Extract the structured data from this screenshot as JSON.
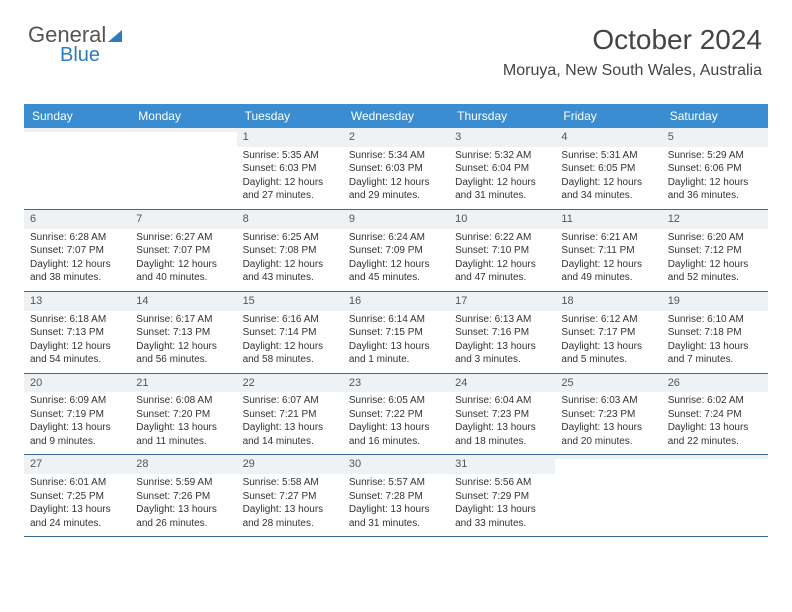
{
  "logo": {
    "text1": "General",
    "text2": "Blue"
  },
  "header": {
    "title": "October 2024",
    "subtitle": "Moruya, New South Wales, Australia"
  },
  "colors": {
    "header_bar": "#3a8dd0",
    "header_text": "#ffffff",
    "week_border": "#3a6a94",
    "shaded_bg": "#eef2f5",
    "body_text": "#333333",
    "logo_blue": "#2f7bbf"
  },
  "dayNames": [
    "Sunday",
    "Monday",
    "Tuesday",
    "Wednesday",
    "Thursday",
    "Friday",
    "Saturday"
  ],
  "weeks": [
    [
      {
        "num": "",
        "sunrise": "",
        "sunset": "",
        "daylight": ""
      },
      {
        "num": "",
        "sunrise": "",
        "sunset": "",
        "daylight": ""
      },
      {
        "num": "1",
        "sunrise": "Sunrise: 5:35 AM",
        "sunset": "Sunset: 6:03 PM",
        "daylight": "Daylight: 12 hours and 27 minutes."
      },
      {
        "num": "2",
        "sunrise": "Sunrise: 5:34 AM",
        "sunset": "Sunset: 6:03 PM",
        "daylight": "Daylight: 12 hours and 29 minutes."
      },
      {
        "num": "3",
        "sunrise": "Sunrise: 5:32 AM",
        "sunset": "Sunset: 6:04 PM",
        "daylight": "Daylight: 12 hours and 31 minutes."
      },
      {
        "num": "4",
        "sunrise": "Sunrise: 5:31 AM",
        "sunset": "Sunset: 6:05 PM",
        "daylight": "Daylight: 12 hours and 34 minutes."
      },
      {
        "num": "5",
        "sunrise": "Sunrise: 5:29 AM",
        "sunset": "Sunset: 6:06 PM",
        "daylight": "Daylight: 12 hours and 36 minutes."
      }
    ],
    [
      {
        "num": "6",
        "sunrise": "Sunrise: 6:28 AM",
        "sunset": "Sunset: 7:07 PM",
        "daylight": "Daylight: 12 hours and 38 minutes."
      },
      {
        "num": "7",
        "sunrise": "Sunrise: 6:27 AM",
        "sunset": "Sunset: 7:07 PM",
        "daylight": "Daylight: 12 hours and 40 minutes."
      },
      {
        "num": "8",
        "sunrise": "Sunrise: 6:25 AM",
        "sunset": "Sunset: 7:08 PM",
        "daylight": "Daylight: 12 hours and 43 minutes."
      },
      {
        "num": "9",
        "sunrise": "Sunrise: 6:24 AM",
        "sunset": "Sunset: 7:09 PM",
        "daylight": "Daylight: 12 hours and 45 minutes."
      },
      {
        "num": "10",
        "sunrise": "Sunrise: 6:22 AM",
        "sunset": "Sunset: 7:10 PM",
        "daylight": "Daylight: 12 hours and 47 minutes."
      },
      {
        "num": "11",
        "sunrise": "Sunrise: 6:21 AM",
        "sunset": "Sunset: 7:11 PM",
        "daylight": "Daylight: 12 hours and 49 minutes."
      },
      {
        "num": "12",
        "sunrise": "Sunrise: 6:20 AM",
        "sunset": "Sunset: 7:12 PM",
        "daylight": "Daylight: 12 hours and 52 minutes."
      }
    ],
    [
      {
        "num": "13",
        "sunrise": "Sunrise: 6:18 AM",
        "sunset": "Sunset: 7:13 PM",
        "daylight": "Daylight: 12 hours and 54 minutes."
      },
      {
        "num": "14",
        "sunrise": "Sunrise: 6:17 AM",
        "sunset": "Sunset: 7:13 PM",
        "daylight": "Daylight: 12 hours and 56 minutes."
      },
      {
        "num": "15",
        "sunrise": "Sunrise: 6:16 AM",
        "sunset": "Sunset: 7:14 PM",
        "daylight": "Daylight: 12 hours and 58 minutes."
      },
      {
        "num": "16",
        "sunrise": "Sunrise: 6:14 AM",
        "sunset": "Sunset: 7:15 PM",
        "daylight": "Daylight: 13 hours and 1 minute."
      },
      {
        "num": "17",
        "sunrise": "Sunrise: 6:13 AM",
        "sunset": "Sunset: 7:16 PM",
        "daylight": "Daylight: 13 hours and 3 minutes."
      },
      {
        "num": "18",
        "sunrise": "Sunrise: 6:12 AM",
        "sunset": "Sunset: 7:17 PM",
        "daylight": "Daylight: 13 hours and 5 minutes."
      },
      {
        "num": "19",
        "sunrise": "Sunrise: 6:10 AM",
        "sunset": "Sunset: 7:18 PM",
        "daylight": "Daylight: 13 hours and 7 minutes."
      }
    ],
    [
      {
        "num": "20",
        "sunrise": "Sunrise: 6:09 AM",
        "sunset": "Sunset: 7:19 PM",
        "daylight": "Daylight: 13 hours and 9 minutes."
      },
      {
        "num": "21",
        "sunrise": "Sunrise: 6:08 AM",
        "sunset": "Sunset: 7:20 PM",
        "daylight": "Daylight: 13 hours and 11 minutes."
      },
      {
        "num": "22",
        "sunrise": "Sunrise: 6:07 AM",
        "sunset": "Sunset: 7:21 PM",
        "daylight": "Daylight: 13 hours and 14 minutes."
      },
      {
        "num": "23",
        "sunrise": "Sunrise: 6:05 AM",
        "sunset": "Sunset: 7:22 PM",
        "daylight": "Daylight: 13 hours and 16 minutes."
      },
      {
        "num": "24",
        "sunrise": "Sunrise: 6:04 AM",
        "sunset": "Sunset: 7:23 PM",
        "daylight": "Daylight: 13 hours and 18 minutes."
      },
      {
        "num": "25",
        "sunrise": "Sunrise: 6:03 AM",
        "sunset": "Sunset: 7:23 PM",
        "daylight": "Daylight: 13 hours and 20 minutes."
      },
      {
        "num": "26",
        "sunrise": "Sunrise: 6:02 AM",
        "sunset": "Sunset: 7:24 PM",
        "daylight": "Daylight: 13 hours and 22 minutes."
      }
    ],
    [
      {
        "num": "27",
        "sunrise": "Sunrise: 6:01 AM",
        "sunset": "Sunset: 7:25 PM",
        "daylight": "Daylight: 13 hours and 24 minutes."
      },
      {
        "num": "28",
        "sunrise": "Sunrise: 5:59 AM",
        "sunset": "Sunset: 7:26 PM",
        "daylight": "Daylight: 13 hours and 26 minutes."
      },
      {
        "num": "29",
        "sunrise": "Sunrise: 5:58 AM",
        "sunset": "Sunset: 7:27 PM",
        "daylight": "Daylight: 13 hours and 28 minutes."
      },
      {
        "num": "30",
        "sunrise": "Sunrise: 5:57 AM",
        "sunset": "Sunset: 7:28 PM",
        "daylight": "Daylight: 13 hours and 31 minutes."
      },
      {
        "num": "31",
        "sunrise": "Sunrise: 5:56 AM",
        "sunset": "Sunset: 7:29 PM",
        "daylight": "Daylight: 13 hours and 33 minutes."
      },
      {
        "num": "",
        "sunrise": "",
        "sunset": "",
        "daylight": ""
      },
      {
        "num": "",
        "sunrise": "",
        "sunset": "",
        "daylight": ""
      }
    ]
  ]
}
